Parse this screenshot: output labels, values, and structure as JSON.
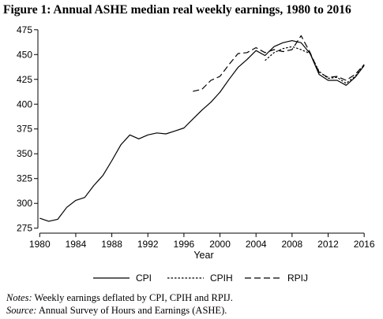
{
  "title": "Figure 1: Annual ASHE median real weekly earnings, 1980 to 2016",
  "notes": {
    "notes_label": "Notes:",
    "notes_text": " Weekly earnings deflated by CPI, CPIH and RPIJ.",
    "source_label": "Source:",
    "source_text": " Annual Survey of Hours and Earnings (ASHE)."
  },
  "chart_data": {
    "type": "line",
    "title": "Figure 1: Annual ASHE median real weekly earnings, 1980 to 2016",
    "xlabel": "Year",
    "ylabel": "",
    "xlim": [
      1979.8,
      2016.6
    ],
    "ylim": [
      270,
      478
    ],
    "xticks": [
      1980,
      1984,
      1988,
      1992,
      1996,
      2000,
      2004,
      2008,
      2012,
      2016
    ],
    "yticks": [
      275,
      300,
      325,
      350,
      375,
      400,
      425,
      450,
      475
    ],
    "grid": false,
    "legend_position": "bottom",
    "series": [
      {
        "name": "CPI",
        "dash": "solid",
        "x": [
          1980,
          1981,
          1982,
          1983,
          1984,
          1985,
          1986,
          1987,
          1988,
          1989,
          1990,
          1991,
          1992,
          1993,
          1994,
          1995,
          1996,
          1997,
          1998,
          1999,
          2000,
          2001,
          2002,
          2003,
          2004,
          2005,
          2006,
          2007,
          2008,
          2009,
          2010,
          2011,
          2012,
          2013,
          2014,
          2015,
          2016
        ],
        "values": [
          285,
          282,
          284,
          296,
          303,
          306,
          318,
          328,
          343,
          359,
          369,
          365,
          369,
          371,
          370,
          373,
          376,
          385,
          394,
          402,
          412,
          425,
          437,
          445,
          454,
          449,
          458,
          462,
          464,
          462,
          451,
          430,
          424,
          424,
          419,
          427,
          439
        ]
      },
      {
        "name": "CPIH",
        "dash": "dotted",
        "x": [
          2005,
          2006,
          2007,
          2008,
          2009,
          2010,
          2011,
          2012,
          2013,
          2014,
          2015,
          2016
        ],
        "values": [
          444,
          452,
          456,
          458,
          455,
          451,
          433,
          426,
          427,
          421,
          428,
          440
        ]
      },
      {
        "name": "RPIJ",
        "dash": "dashed",
        "x": [
          1997,
          1998,
          1999,
          2000,
          2001,
          2002,
          2003,
          2004,
          2005,
          2006,
          2007,
          2008,
          2009,
          2010,
          2011,
          2012,
          2013,
          2014,
          2015,
          2016
        ],
        "values": [
          413,
          415,
          424,
          428,
          440,
          451,
          452,
          457,
          452,
          455,
          453,
          455,
          469,
          452,
          432,
          427,
          428,
          424,
          430,
          440
        ]
      }
    ]
  }
}
